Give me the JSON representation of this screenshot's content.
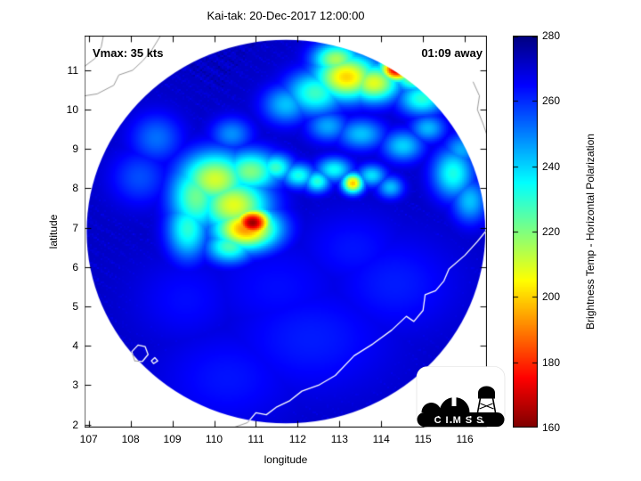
{
  "title": "Kai-tak: 20-Dec-2017 12:00:00",
  "annotations": {
    "vmax_label": "Vmax: 35 kts",
    "time_away_label": "01:09 away"
  },
  "axes": {
    "xlabel": "longitude",
    "ylabel": "latitude",
    "xlim": [
      106.9,
      116.53
    ],
    "ylim": [
      1.925,
      11.88
    ],
    "xticks": [
      107,
      108,
      109,
      110,
      111,
      112,
      113,
      114,
      115,
      116
    ],
    "yticks": [
      2,
      3,
      4,
      5,
      6,
      7,
      8,
      9,
      10,
      11
    ]
  },
  "colorbar": {
    "label": "Brightness Temp - Horizontal Polarization",
    "min": 160,
    "max": 280,
    "ticks": [
      160,
      180,
      200,
      220,
      240,
      260,
      280
    ],
    "colormap": "jet_reversed"
  },
  "logo": {
    "text": "CIMSS"
  },
  "chart_data": {
    "type": "heatmap",
    "title": "Kai-tak: 20-Dec-2017 12:00:00",
    "storm": {
      "name": "Kai-tak",
      "datetime": "20-Dec-2017 12:00:00",
      "vmax_kts": 35,
      "time_offset": "01:09 away"
    },
    "field": "Microwave Brightness Temperature, Horizontal Polarization (K)",
    "value_range_k": [
      160,
      280
    ],
    "colormap": "jet_reversed (280 K = dark blue, 160 K = dark red)",
    "disk": {
      "center_lon": 111.72,
      "center_lat": 6.9,
      "radius_lon_deg": 4.77,
      "radius_lat_deg": 4.87,
      "background_tb_k": 272
    },
    "blob_fields": [
      "lon",
      "lat",
      "sigma_lon_deg",
      "sigma_lat_deg",
      "peak_tb_k"
    ],
    "blobs": [
      [
        110.9,
        7.15,
        0.32,
        0.26,
        163
      ],
      [
        110.75,
        7.0,
        0.55,
        0.38,
        192
      ],
      [
        110.45,
        7.6,
        0.6,
        0.5,
        208
      ],
      [
        110.0,
        8.25,
        0.6,
        0.5,
        210
      ],
      [
        109.55,
        7.8,
        0.45,
        0.65,
        222
      ],
      [
        109.35,
        7.0,
        0.35,
        0.55,
        230
      ],
      [
        110.85,
        8.45,
        0.5,
        0.38,
        220
      ],
      [
        111.45,
        8.55,
        0.3,
        0.25,
        228
      ],
      [
        110.35,
        6.55,
        0.4,
        0.3,
        226
      ],
      [
        112.0,
        8.35,
        0.28,
        0.22,
        232
      ],
      [
        112.45,
        8.2,
        0.22,
        0.2,
        230
      ],
      [
        112.85,
        8.5,
        0.3,
        0.22,
        234
      ],
      [
        113.3,
        8.15,
        0.18,
        0.18,
        198
      ],
      [
        113.75,
        8.35,
        0.25,
        0.2,
        238
      ],
      [
        114.2,
        8.05,
        0.22,
        0.2,
        242
      ],
      [
        113.15,
        10.85,
        0.55,
        0.42,
        200
      ],
      [
        112.9,
        11.3,
        0.4,
        0.3,
        215
      ],
      [
        113.8,
        10.7,
        0.45,
        0.35,
        208
      ],
      [
        114.35,
        11.05,
        0.28,
        0.22,
        167
      ],
      [
        114.75,
        10.9,
        0.35,
        0.3,
        215
      ],
      [
        112.4,
        10.45,
        0.5,
        0.4,
        228
      ],
      [
        111.7,
        10.15,
        0.4,
        0.35,
        242
      ],
      [
        114.95,
        10.3,
        0.4,
        0.3,
        230
      ],
      [
        115.45,
        10.7,
        0.3,
        0.25,
        238
      ],
      [
        113.5,
        9.4,
        0.4,
        0.28,
        242
      ],
      [
        112.7,
        9.6,
        0.35,
        0.28,
        245
      ],
      [
        114.5,
        9.1,
        0.35,
        0.28,
        240
      ],
      [
        115.1,
        9.55,
        0.3,
        0.25,
        243
      ],
      [
        115.7,
        8.4,
        0.35,
        0.45,
        232
      ],
      [
        116.1,
        7.7,
        0.3,
        0.4,
        242
      ],
      [
        115.9,
        9.0,
        0.3,
        0.3,
        245
      ],
      [
        110.4,
        9.4,
        0.35,
        0.3,
        248
      ],
      [
        108.6,
        9.3,
        0.45,
        0.45,
        252
      ],
      [
        108.2,
        8.3,
        0.5,
        0.5,
        256
      ],
      [
        112.3,
        4.2,
        1.4,
        1.0,
        262
      ],
      [
        110.3,
        3.2,
        1.2,
        0.9,
        263
      ],
      [
        114.3,
        5.6,
        1.1,
        0.9,
        262
      ],
      [
        109.3,
        5.2,
        0.9,
        0.8,
        264
      ],
      [
        113.3,
        6.5,
        0.9,
        0.7,
        263
      ],
      [
        111.5,
        5.5,
        1.2,
        0.9,
        264
      ]
    ],
    "coastlines": {
      "vietnam_coast": [
        [
          106.9,
          10.35
        ],
        [
          107.2,
          10.4
        ],
        [
          107.6,
          10.62
        ],
        [
          107.72,
          10.88
        ],
        [
          108.05,
          11.0
        ],
        [
          108.3,
          11.25
        ],
        [
          108.5,
          11.5
        ],
        [
          108.72,
          11.88
        ]
      ],
      "vietnam_corner": [
        [
          106.9,
          11.1
        ],
        [
          107.15,
          11.3
        ],
        [
          107.3,
          11.6
        ],
        [
          107.35,
          11.88
        ]
      ],
      "borneo_coast": [
        [
          110.45,
          1.92
        ],
        [
          110.8,
          2.05
        ],
        [
          111.0,
          2.3
        ],
        [
          111.25,
          2.25
        ],
        [
          111.5,
          2.45
        ],
        [
          111.8,
          2.6
        ],
        [
          112.1,
          2.85
        ],
        [
          112.5,
          3.0
        ],
        [
          112.9,
          3.25
        ],
        [
          113.35,
          3.75
        ],
        [
          113.8,
          4.05
        ],
        [
          114.25,
          4.4
        ],
        [
          114.6,
          4.75
        ],
        [
          114.78,
          4.62
        ],
        [
          115.0,
          4.9
        ],
        [
          115.05,
          5.3
        ],
        [
          115.3,
          5.4
        ],
        [
          115.5,
          5.65
        ],
        [
          115.62,
          5.95
        ],
        [
          116.0,
          6.3
        ],
        [
          116.3,
          6.65
        ],
        [
          116.53,
          6.95
        ]
      ],
      "natuna_island": [
        [
          108.1,
          3.62
        ],
        [
          108.28,
          3.6
        ],
        [
          108.42,
          3.78
        ],
        [
          108.35,
          3.98
        ],
        [
          108.18,
          4.02
        ],
        [
          108.03,
          3.85
        ],
        [
          108.1,
          3.62
        ]
      ],
      "natuna_small_island": [
        [
          108.55,
          3.55
        ],
        [
          108.65,
          3.62
        ],
        [
          108.58,
          3.7
        ],
        [
          108.5,
          3.62
        ],
        [
          108.55,
          3.55
        ]
      ],
      "palawan_edge": [
        [
          116.2,
          10.7
        ],
        [
          116.35,
          10.35
        ],
        [
          116.3,
          10.0
        ],
        [
          116.45,
          9.6
        ],
        [
          116.53,
          9.35
        ]
      ]
    }
  }
}
